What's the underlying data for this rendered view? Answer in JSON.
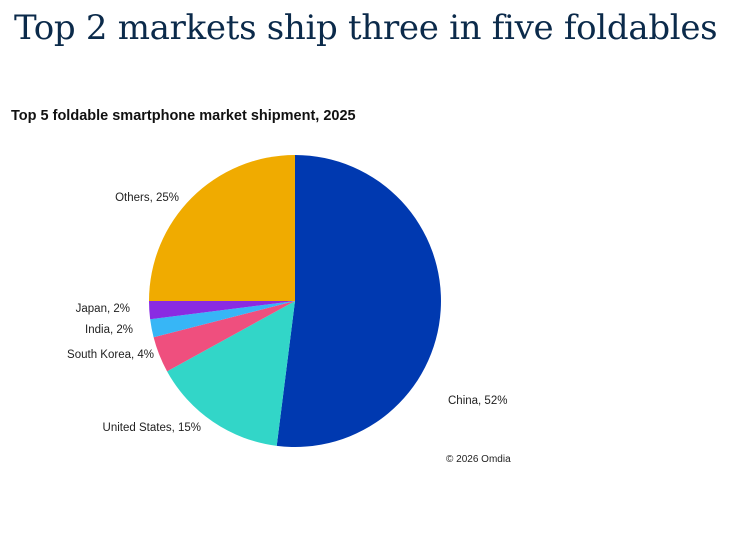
{
  "headline": "Top 2 markets ship three in five foldables",
  "source": "© 2026 Omdia",
  "chart_data": {
    "type": "pie",
    "title": "Top 5 foldable smartphone market shipment, 2025",
    "slices": [
      {
        "name": "China",
        "value": 52,
        "label": "China, 52%",
        "color": "#0039b0"
      },
      {
        "name": "United States",
        "value": 15,
        "label": "United States, 15%",
        "color": "#32d6c8"
      },
      {
        "name": "South Korea",
        "value": 4,
        "label": "South Korea, 4%",
        "color": "#ef4f7e"
      },
      {
        "name": "India",
        "value": 2,
        "label": "India, 2%",
        "color": "#37b6f6"
      },
      {
        "name": "Japan",
        "value": 2,
        "label": "Japan, 2%",
        "color": "#8a2be2"
      },
      {
        "name": "Others",
        "value": 25,
        "label": "Others, 25%",
        "color": "#f0ab00"
      }
    ]
  }
}
